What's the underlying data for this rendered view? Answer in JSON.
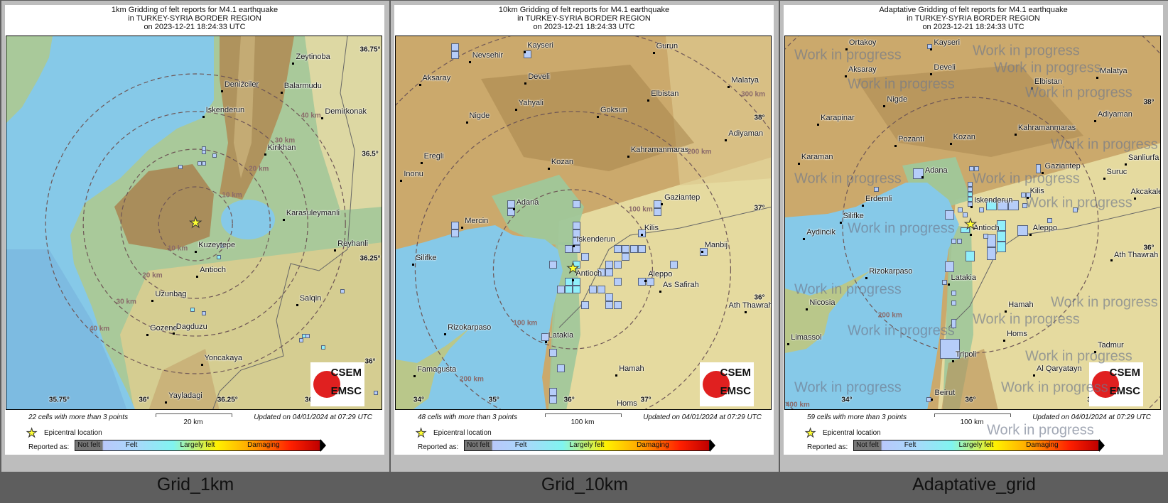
{
  "panels": [
    {
      "title": [
        "1km Gridding of felt reports for M4.1 earthquake",
        "in TURKEY-SYRIA BORDER REGION",
        "on  2023-12-21 18:24:33 UTC"
      ],
      "cities": [
        "Zeytinoba",
        "Denizciler",
        "Balarmudu",
        "Iskenderun",
        "Demirkonak",
        "Kirikhan",
        "Karasuleymanli",
        "Kuzeytepe",
        "Antioch",
        "Uzunbag",
        "Gozene",
        "Dagduzu",
        "Yoncakaya",
        "Yayladagi",
        "Reyhanli",
        "Salqin"
      ],
      "ring_labels": [
        "10 km",
        "20 km",
        "30 km",
        "40 km",
        "10 km",
        "20 km",
        "30 km",
        "40 km"
      ],
      "axis_labels": [
        "36.75°",
        "36.5°",
        "36.25°",
        "36°",
        "35.75°",
        "36°",
        "36.25°",
        "36.5°"
      ],
      "cells_text": "22 cells with more than 3 points",
      "scale_label": "20 km",
      "updated": "Updated on 04/01/2024 at 07:29 UTC",
      "caption": "Grid_1km"
    },
    {
      "title": [
        "10km Gridding of felt reports for M4.1 earthquake",
        "in TURKEY-SYRIA BORDER REGION",
        "on  2023-12-21 18:24:33 UTC"
      ],
      "cities": [
        "Kayseri",
        "Nevsehir",
        "Aksaray",
        "Develi",
        "Gurun",
        "Malatya",
        "Elbistan",
        "Yahyali",
        "Goksun",
        "Nigde",
        "Adiyaman",
        "Kahramanmaras",
        "Eregli",
        "Kozan",
        "Inonu",
        "Adana",
        "Gaziantep",
        "Mercin",
        "Kilis",
        "Iskenderun",
        "Manbij",
        "Silifke",
        "Antioch",
        "Aleppo",
        "As Safirah",
        "Ath Thawrah",
        "Rizokarpaso",
        "Latakia",
        "Famagusta",
        "Hamah",
        "Homs"
      ],
      "ring_labels": [
        "100 km",
        "100 km",
        "200 km",
        "200 km",
        "300 km"
      ],
      "axis_labels": [
        "38°",
        "37°",
        "36°",
        "34°",
        "35°",
        "36°",
        "37°",
        "38°"
      ],
      "cells_text": "48 cells with more than 3 points",
      "scale_label": "100 km",
      "updated": "Updated on 04/01/2024 at 07:29 UTC",
      "caption": "Grid_10km"
    },
    {
      "title": [
        "Adaptative Gridding of felt reports for M4.1 earthquake",
        "in TURKEY-SYRIA BORDER REGION",
        "on  2023-12-21 18:24:33 UTC"
      ],
      "cities": [
        "Ortakoy",
        "Kayseri",
        "Aksaray",
        "Develi",
        "Malatya",
        "Elbistan",
        "Nigde",
        "Adiyaman",
        "Karapinar",
        "Kahramanmaras",
        "Pozanti",
        "Kozan",
        "Karaman",
        "Sanliurfa",
        "Gaziantep",
        "Suruc",
        "Adana",
        "Kilis",
        "Akcakale",
        "Erdemli",
        "Iskenderun",
        "Silifke",
        "Aydincik",
        "Antioch",
        "Aleppo",
        "Ath Thawrah",
        "Rizokarpaso",
        "Latakia",
        "Nicosia",
        "Hamah",
        "Homs",
        "Limassol",
        "Tadmur",
        "Tripoli",
        "Al Qaryatayn",
        "Beirut"
      ],
      "ring_labels": [
        "200 km",
        "400 km"
      ],
      "axis_labels": [
        "38°",
        "36°",
        "34°",
        "36°",
        "38°"
      ],
      "cells_text": "59 cells with more than 3 points",
      "scale_label": "100 km",
      "updated": "Updated on 04/01/2024 at 07:29 UTC",
      "caption": "Adaptative_grid",
      "watermark": "Work in progress"
    }
  ],
  "legend": {
    "epicenter": "Epicentral location",
    "reported_as": "Reported as:",
    "scale": [
      "Not felt",
      "Felt",
      "Largely felt",
      "Damaging"
    ],
    "epicenter_icon": "yellow-star-icon"
  },
  "logo": {
    "line1": "CSEM",
    "line2": "EMSC"
  },
  "colors": {
    "felt_cell": "#b6cdf9",
    "strong_cell": "#90eefa",
    "sea": "#86c9e8",
    "epicenter": "#ffff33"
  }
}
